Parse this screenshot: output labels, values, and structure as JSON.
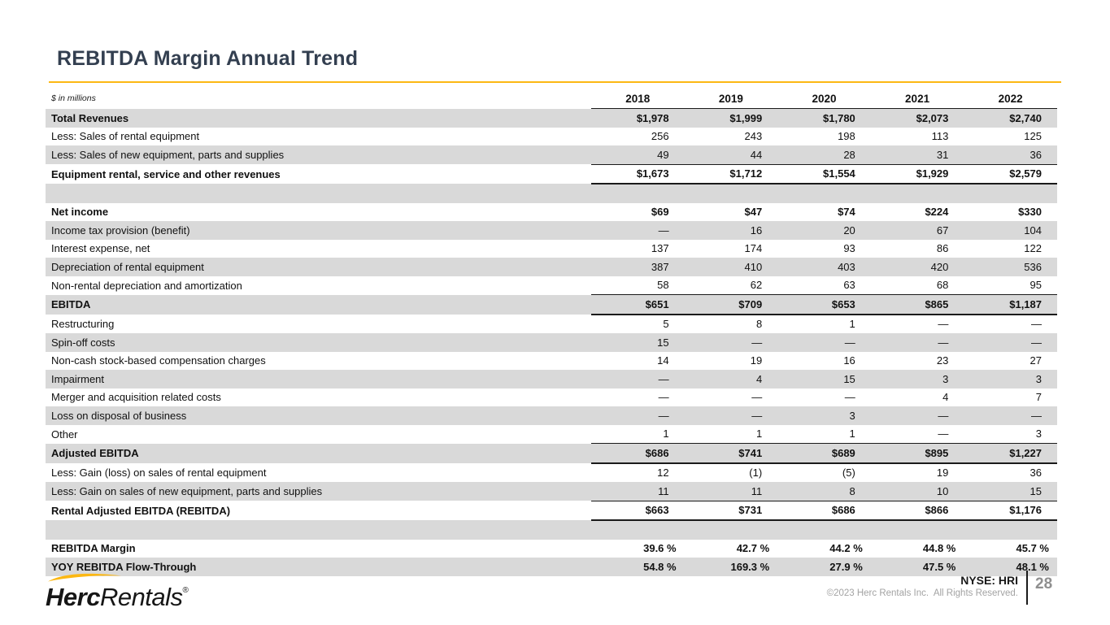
{
  "slide": {
    "title": "REBITDA Margin Annual Trend",
    "units_note": "$ in millions",
    "accent_color": "#FCB813",
    "title_color": "#333F50",
    "shade_color": "#d9d9d9"
  },
  "table": {
    "years": [
      "2018",
      "2019",
      "2020",
      "2021",
      "2022"
    ],
    "rows": [
      {
        "label": "Total Revenues",
        "values": [
          "$1,978",
          "$1,999",
          "$1,780",
          "$2,073",
          "$2,740"
        ],
        "bold": true,
        "shade": true
      },
      {
        "label": "Less: Sales of rental equipment",
        "values": [
          "256",
          "243",
          "198",
          "113",
          "125"
        ]
      },
      {
        "label": "Less: Sales of new equipment, parts and supplies",
        "values": [
          "49",
          "44",
          "28",
          "31",
          "36"
        ],
        "shade": true
      },
      {
        "label": "Equipment rental, service and other revenues",
        "values": [
          "$1,673",
          "$1,712",
          "$1,554",
          "$1,929",
          "$2,579"
        ],
        "bold": true,
        "rules": true
      },
      {
        "label": "",
        "values": [
          "",
          "",
          "",
          "",
          ""
        ],
        "shade": true
      },
      {
        "label": "Net income",
        "values": [
          "$69",
          "$47",
          "$74",
          "$224",
          "$330"
        ],
        "bold": true
      },
      {
        "label": "Income tax provision (benefit)",
        "values": [
          "—",
          "16",
          "20",
          "67",
          "104"
        ],
        "shade": true
      },
      {
        "label": "Interest expense, net",
        "values": [
          "137",
          "174",
          "93",
          "86",
          "122"
        ]
      },
      {
        "label": "Depreciation of rental equipment",
        "values": [
          "387",
          "410",
          "403",
          "420",
          "536"
        ],
        "shade": true
      },
      {
        "label": "Non-rental depreciation and amortization",
        "values": [
          "58",
          "62",
          "63",
          "68",
          "95"
        ]
      },
      {
        "label": "EBITDA",
        "values": [
          "$651",
          "$709",
          "$653",
          "$865",
          "$1,187"
        ],
        "bold": true,
        "shade": true,
        "rules": true
      },
      {
        "label": "Restructuring",
        "values": [
          "5",
          "8",
          "1",
          "—",
          "—"
        ]
      },
      {
        "label": "Spin-off costs",
        "values": [
          "15",
          "—",
          "—",
          "—",
          "—"
        ],
        "shade": true
      },
      {
        "label": "Non-cash stock-based compensation charges",
        "values": [
          "14",
          "19",
          "16",
          "23",
          "27"
        ]
      },
      {
        "label": "Impairment",
        "values": [
          "—",
          "4",
          "15",
          "3",
          "3"
        ],
        "shade": true
      },
      {
        "label": "Merger and acquisition related costs",
        "values": [
          "—",
          "—",
          "—",
          "4",
          "7"
        ]
      },
      {
        "label": "Loss on disposal of business",
        "values": [
          "—",
          "—",
          "3",
          "—",
          "—"
        ],
        "shade": true
      },
      {
        "label": "Other",
        "values": [
          "1",
          "1",
          "1",
          "—",
          "3"
        ]
      },
      {
        "label": "Adjusted EBITDA",
        "values": [
          "$686",
          "$741",
          "$689",
          "$895",
          "$1,227"
        ],
        "bold": true,
        "shade": true,
        "rules": true
      },
      {
        "label": "Less: Gain (loss) on sales of rental equipment",
        "values": [
          "12",
          "(1)",
          "(5)",
          "19",
          "36"
        ]
      },
      {
        "label": "Less: Gain on sales of new equipment, parts and supplies",
        "values": [
          "11",
          "11",
          "8",
          "10",
          "15"
        ],
        "shade": true
      },
      {
        "label": "Rental Adjusted EBITDA (REBITDA)",
        "values": [
          "$663",
          "$731",
          "$686",
          "$866",
          "$1,176"
        ],
        "bold": true,
        "rules": true
      },
      {
        "label": "",
        "values": [
          "",
          "",
          "",
          "",
          ""
        ],
        "shade": true
      },
      {
        "label": "REBITDA Margin",
        "values": [
          "39.6 %",
          "42.7 %",
          "44.2 %",
          "44.8 %",
          "45.7 %"
        ],
        "bold": true,
        "pct": true
      },
      {
        "label": "YOY REBITDA Flow-Through",
        "values": [
          "54.8 %",
          "169.3 %",
          "27.9 %",
          "47.5 %",
          "48.1 %"
        ],
        "bold": true,
        "shade": true,
        "pct": true
      }
    ]
  },
  "footer": {
    "logo_herc": "Herc",
    "logo_rentals": "Rentals",
    "logo_reg": "®",
    "ticker": "NYSE: HRI",
    "copyright": "©2023 Herc Rentals Inc.  All Rights Reserved.",
    "page_number": "28"
  }
}
